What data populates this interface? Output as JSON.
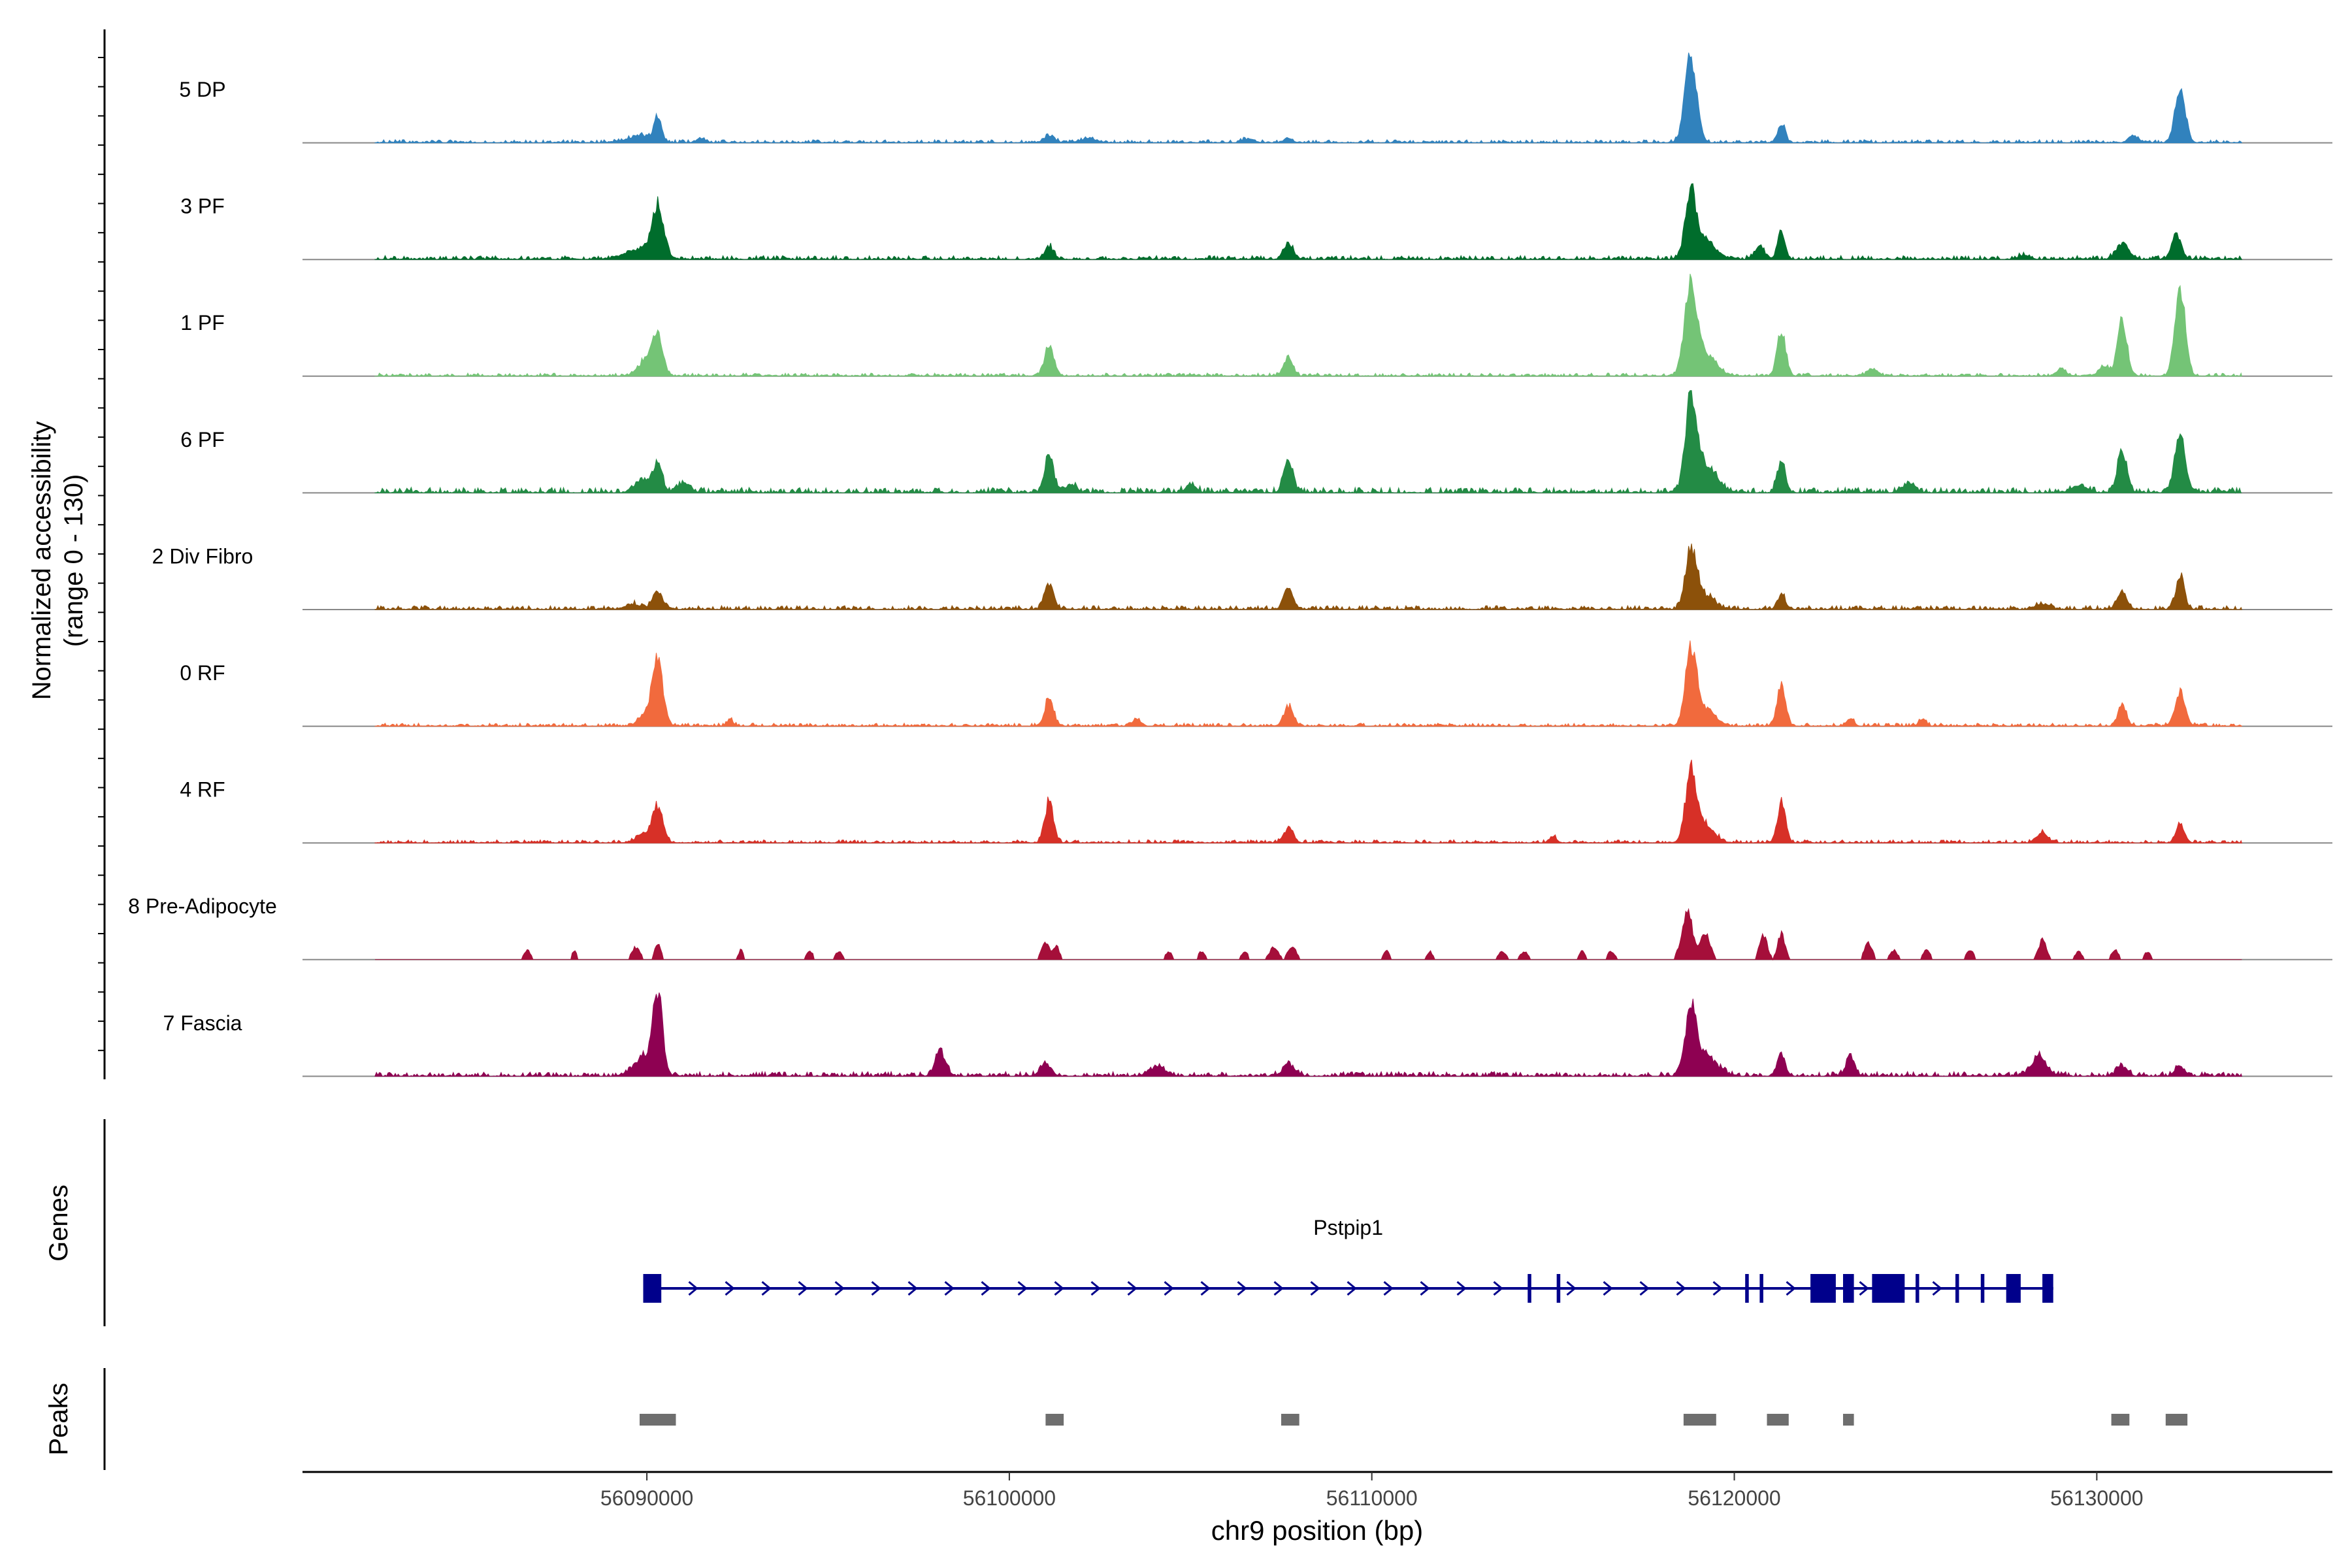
{
  "chart_data": {
    "type": "area",
    "title": "",
    "xlabel": "chr9 position (bp)",
    "ylabel": "Normalized accessibility",
    "ylabel_range": "(range 0 - 130)",
    "ylim": [
      0,
      130
    ],
    "xlim": [
      56080500,
      56136500
    ],
    "x_ticks": [
      56090000,
      56100000,
      56110000,
      56120000,
      56130000
    ],
    "x_tick_labels": [
      "56090000",
      "56100000",
      "56110000",
      "56120000",
      "56130000"
    ],
    "coverage_start": 56082500,
    "coverage_end": 56134000,
    "series": [
      {
        "name": "5 DP",
        "color": "#3182bd",
        "sparse": false,
        "noise": 4,
        "seed": 11,
        "peaks": [
          [
            56089900,
            8,
            250
          ],
          [
            56090300,
            38,
            100
          ],
          [
            56089500,
            4,
            300
          ],
          [
            56091500,
            6,
            120
          ],
          [
            56102200,
            6,
            200
          ],
          [
            56101100,
            10,
            140
          ],
          [
            56106600,
            6,
            150
          ],
          [
            56107700,
            6,
            120
          ],
          [
            56118800,
            128,
            160
          ],
          [
            56121300,
            28,
            100
          ],
          [
            56131000,
            10,
            120
          ],
          [
            56132300,
            82,
            140
          ]
        ]
      },
      {
        "name": "3 PF",
        "color": "#006d2c",
        "sparse": false,
        "noise": 5,
        "seed": 23,
        "peaks": [
          [
            56089800,
            14,
            400
          ],
          [
            56090300,
            70,
            160
          ],
          [
            56101100,
            18,
            120
          ],
          [
            56107700,
            24,
            130
          ],
          [
            56118800,
            92,
            150
          ],
          [
            56119200,
            25,
            300
          ],
          [
            56121300,
            40,
            100
          ],
          [
            56120700,
            15,
            150
          ],
          [
            56130700,
            24,
            160
          ],
          [
            56132200,
            36,
            130
          ],
          [
            56128000,
            6,
            150
          ]
        ]
      },
      {
        "name": "1 PF",
        "color": "#74c476",
        "sparse": false,
        "noise": 4,
        "seed": 37,
        "peaks": [
          [
            56090000,
            24,
            220
          ],
          [
            56090300,
            55,
            140
          ],
          [
            56101100,
            45,
            130
          ],
          [
            56107700,
            28,
            120
          ],
          [
            56118800,
            120,
            170
          ],
          [
            56119200,
            30,
            300
          ],
          [
            56121300,
            68,
            120
          ],
          [
            56123800,
            10,
            140
          ],
          [
            56129000,
            10,
            120
          ],
          [
            56130200,
            14,
            150
          ],
          [
            56130700,
            82,
            130
          ],
          [
            56132300,
            128,
            140
          ]
        ]
      },
      {
        "name": "6 PF",
        "color": "#238b45",
        "sparse": false,
        "noise": 7,
        "seed": 53,
        "peaks": [
          [
            56089900,
            20,
            200
          ],
          [
            56090300,
            40,
            120
          ],
          [
            56091000,
            10,
            200
          ],
          [
            56101100,
            55,
            120
          ],
          [
            56101700,
            12,
            150
          ],
          [
            56107700,
            45,
            130
          ],
          [
            56105000,
            10,
            150
          ],
          [
            56118800,
            128,
            150
          ],
          [
            56119200,
            40,
            300
          ],
          [
            56121300,
            48,
            110
          ],
          [
            56124800,
            14,
            150
          ],
          [
            56130700,
            60,
            130
          ],
          [
            56132300,
            80,
            150
          ],
          [
            56129500,
            10,
            200
          ]
        ]
      },
      {
        "name": "2 Div Fibro",
        "color": "#8c510a",
        "sparse": false,
        "noise": 5,
        "seed": 71,
        "peaks": [
          [
            56090300,
            25,
            140
          ],
          [
            56089600,
            8,
            200
          ],
          [
            56101100,
            38,
            120
          ],
          [
            56107700,
            28,
            130
          ],
          [
            56118800,
            88,
            150
          ],
          [
            56119200,
            20,
            250
          ],
          [
            56121300,
            22,
            110
          ],
          [
            56130700,
            24,
            140
          ],
          [
            56132300,
            48,
            120
          ],
          [
            56128500,
            8,
            200
          ]
        ]
      },
      {
        "name": "0 RF",
        "color": "#f16a3d",
        "sparse": false,
        "noise": 4,
        "seed": 89,
        "peaks": [
          [
            56090300,
            95,
            140
          ],
          [
            56090000,
            18,
            200
          ],
          [
            56092300,
            10,
            80
          ],
          [
            56101100,
            42,
            120
          ],
          [
            56103500,
            10,
            100
          ],
          [
            56107700,
            28,
            130
          ],
          [
            56118800,
            110,
            150
          ],
          [
            56119200,
            25,
            250
          ],
          [
            56121300,
            62,
            110
          ],
          [
            56123200,
            12,
            100
          ],
          [
            56125200,
            10,
            100
          ],
          [
            56130700,
            30,
            120
          ],
          [
            56132300,
            48,
            140
          ]
        ]
      },
      {
        "name": "4 RF",
        "color": "#d73027",
        "sparse": false,
        "noise": 4,
        "seed": 97,
        "peaks": [
          [
            56090300,
            52,
            140
          ],
          [
            56089900,
            12,
            200
          ],
          [
            56101100,
            60,
            120
          ],
          [
            56107700,
            20,
            130
          ],
          [
            56118800,
            98,
            150
          ],
          [
            56119200,
            25,
            250
          ],
          [
            56121300,
            60,
            110
          ],
          [
            56128500,
            14,
            140
          ],
          [
            56132300,
            26,
            110
          ],
          [
            56115000,
            8,
            100
          ]
        ]
      },
      {
        "name": "8 Pre-Adipocyte",
        "color": "#a50f3a",
        "sparse": true,
        "noise": 0,
        "seed": 101,
        "peaks": [
          [
            56086700,
            14,
            90
          ],
          [
            56088000,
            12,
            70
          ],
          [
            56089700,
            18,
            120
          ],
          [
            56090300,
            22,
            90
          ],
          [
            56092600,
            14,
            70
          ],
          [
            56094500,
            12,
            90
          ],
          [
            56095300,
            12,
            90
          ],
          [
            56101000,
            24,
            110
          ],
          [
            56101300,
            20,
            80
          ],
          [
            56104400,
            12,
            90
          ],
          [
            56105300,
            12,
            90
          ],
          [
            56106500,
            12,
            90
          ],
          [
            56107300,
            18,
            120
          ],
          [
            56107800,
            20,
            110
          ],
          [
            56110400,
            14,
            80
          ],
          [
            56111600,
            12,
            80
          ],
          [
            56113600,
            12,
            100
          ],
          [
            56114200,
            12,
            100
          ],
          [
            56115800,
            12,
            80
          ],
          [
            56116600,
            12,
            100
          ],
          [
            56118700,
            70,
            150
          ],
          [
            56119200,
            40,
            130
          ],
          [
            56120800,
            36,
            110
          ],
          [
            56121300,
            38,
            100
          ],
          [
            56123700,
            24,
            110
          ],
          [
            56124400,
            14,
            100
          ],
          [
            56125300,
            14,
            100
          ],
          [
            56126500,
            14,
            100
          ],
          [
            56128500,
            28,
            110
          ],
          [
            56129500,
            12,
            90
          ],
          [
            56130500,
            14,
            100
          ],
          [
            56131400,
            12,
            90
          ]
        ]
      },
      {
        "name": "7 Fascia",
        "color": "#8e0152",
        "sparse": false,
        "noise": 6,
        "seed": 131,
        "peaks": [
          [
            56089900,
            28,
            250
          ],
          [
            56090300,
            118,
            130
          ],
          [
            56098100,
            35,
            140
          ],
          [
            56101000,
            18,
            150
          ],
          [
            56104100,
            14,
            200
          ],
          [
            56107700,
            18,
            150
          ],
          [
            56118800,
            90,
            150
          ],
          [
            56119200,
            30,
            300
          ],
          [
            56121300,
            30,
            110
          ],
          [
            56123200,
            28,
            120
          ],
          [
            56128400,
            28,
            200
          ],
          [
            56130700,
            14,
            150
          ],
          [
            56132300,
            12,
            150
          ]
        ]
      }
    ],
    "genes_label": "Genes",
    "genes": [
      {
        "name": "Pstpip1",
        "start": 56089900,
        "end": 56128800,
        "strand": "+",
        "exons": [
          [
            56089900,
            56090400
          ],
          [
            56114300,
            56114400
          ],
          [
            56115100,
            56115200
          ],
          [
            56120300,
            56120400
          ],
          [
            56120700,
            56120800
          ],
          [
            56122100,
            56122800
          ],
          [
            56123000,
            56123300
          ],
          [
            56123800,
            56124700
          ],
          [
            56125000,
            56125100
          ],
          [
            56126100,
            56126200
          ],
          [
            56126800,
            56126900
          ],
          [
            56127500,
            56127900
          ],
          [
            56128500,
            56128800
          ]
        ]
      }
    ],
    "peaks_label": "Peaks",
    "peaks": [
      [
        56089800,
        56090800
      ],
      [
        56101000,
        56101500
      ],
      [
        56107500,
        56108000
      ],
      [
        56118600,
        56119500
      ],
      [
        56120900,
        56121500
      ],
      [
        56123000,
        56123300
      ],
      [
        56130400,
        56130900
      ],
      [
        56131900,
        56132500
      ]
    ]
  }
}
